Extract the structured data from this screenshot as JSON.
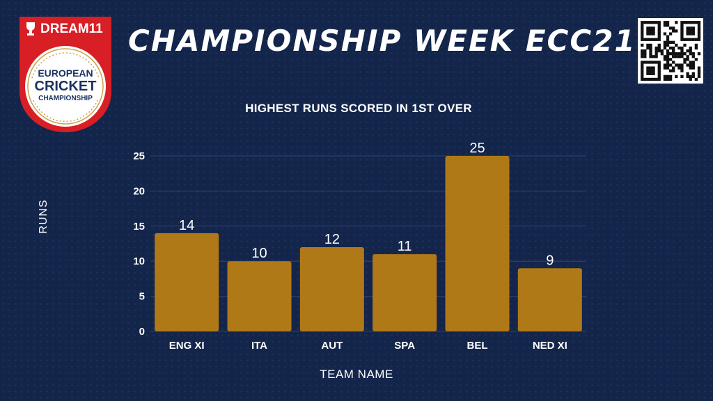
{
  "header": {
    "title": "CHAMPIONSHIP WEEK ECC21"
  },
  "logo": {
    "brand": "DREAM11",
    "line1": "EUROPEAN",
    "line2": "CRICKET",
    "line3": "CHAMPIONSHIP"
  },
  "colors": {
    "background": "#13254a",
    "bar": "#b07917",
    "logo_red": "#d81f26",
    "gridline": "#2f4470"
  },
  "chart_data": {
    "type": "bar",
    "title": "HIGHEST RUNS SCORED IN 1ST OVER",
    "xlabel": "TEAM NAME",
    "ylabel": "RUNS",
    "categories": [
      "ENG XI",
      "ITA",
      "AUT",
      "SPA",
      "BEL",
      "NED XI"
    ],
    "values": [
      14,
      10,
      12,
      11,
      25,
      9
    ],
    "ylim": [
      0,
      25
    ],
    "yticks": [
      0,
      5,
      10,
      15,
      20,
      25
    ],
    "grid": true,
    "data_labels": true
  }
}
